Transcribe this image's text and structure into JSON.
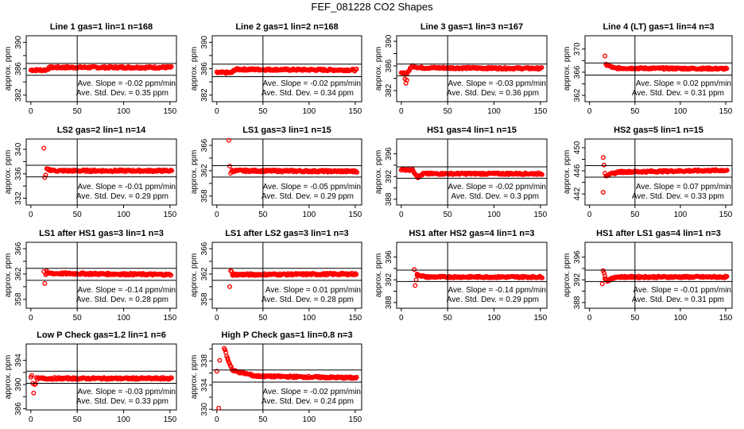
{
  "chart_data": {
    "type": "scatter",
    "title": "FEF_081228  CO2 Shapes",
    "xlabel": "",
    "ylabel": "approx. ppm",
    "xlim": [
      -5,
      157
    ],
    "xticks": [
      0,
      50,
      100,
      150
    ],
    "vline_x": 50,
    "marker_color": "#ff0000",
    "panels": [
      {
        "title": "Line 1 gas=1 lin=1 n=168",
        "ylim": [
          381,
          391
        ],
        "yticks": [
          382,
          384,
          386,
          388,
          390
        ],
        "ylabels": [
          382,
          386,
          390
        ],
        "hlines": [
          385.0,
          386.8
        ],
        "segments": [
          [
            0,
            16,
            385.8,
            385.8
          ],
          [
            16,
            21,
            385.8,
            386.2
          ],
          [
            21,
            152,
            386.2,
            386.2
          ]
        ],
        "outliers": [],
        "slope": "Ave. Slope =  -0.02 ppm/min",
        "sd": "Ave. Std. Dev. =  0.35 ppm"
      },
      {
        "title": "Line 2 gas=1 lin=2 n=168",
        "ylim": [
          381,
          391
        ],
        "yticks": [
          382,
          384,
          386,
          388,
          390
        ],
        "ylabels": [
          382,
          386,
          390
        ],
        "hlines": [
          384.8,
          386.7
        ],
        "segments": [
          [
            0,
            16,
            385.4,
            385.4
          ],
          [
            16,
            20,
            385.4,
            385.9
          ],
          [
            20,
            152,
            385.9,
            385.8
          ]
        ],
        "outliers": [],
        "slope": "Ave. Slope =  -0.02 ppm/min",
        "sd": "Ave. Std. Dev. =  0.34 ppm"
      },
      {
        "title": "Line 3 gas=1 lin=3 n=167",
        "ylim": [
          380.2,
          390.9
        ],
        "yticks": [
          382,
          384,
          386,
          388,
          390
        ],
        "ylabels": [
          382,
          386,
          390
        ],
        "hlines": [
          384.4,
          386.3
        ],
        "segments": [
          [
            0,
            6,
            384.8,
            384.8
          ],
          [
            6,
            12,
            384.8,
            386.0
          ],
          [
            12,
            20,
            386.0,
            385.7
          ],
          [
            20,
            152,
            385.7,
            385.6
          ]
        ],
        "outliers": [
          [
            4,
            383.9
          ],
          [
            5,
            383.2
          ],
          [
            6,
            383.7
          ]
        ],
        "slope": "Ave. Slope =  -0.03 ppm/min",
        "sd": "Ave. Std. Dev. =  0.36 ppm"
      },
      {
        "title": "Line 4 (LT) gas=1 lin=4 n=3",
        "ylim": [
          360.9,
          372.3
        ],
        "yticks": [
          362,
          364,
          366,
          368,
          370
        ],
        "ylabels": [
          362,
          366,
          370
        ],
        "hlines": [
          365.5,
          367.6
        ],
        "segments": [
          [
            18,
            26,
            367.3,
            366.8
          ],
          [
            26,
            152,
            366.7,
            366.6
          ]
        ],
        "outliers": [
          [
            17,
            368.8
          ]
        ],
        "slope": "Ave. Slope =  0.02 ppm/min",
        "sd": "Ave. Std. Dev. =  0.31 ppm"
      },
      {
        "title": "LS2 gas=2 lin=1 n=14",
        "ylim": [
          330.9,
          341.7
        ],
        "yticks": [
          332,
          334,
          336,
          338,
          340
        ],
        "ylabels": [
          332,
          336,
          340
        ],
        "hlines": [
          335.5,
          337.4
        ],
        "segments": [
          [
            17,
            25,
            336.7,
            336.6
          ],
          [
            25,
            152,
            336.5,
            336.5
          ]
        ],
        "outliers": [
          [
            14,
            340.2
          ],
          [
            15,
            335.4
          ],
          [
            16,
            335.8
          ]
        ],
        "slope": "Ave. Slope =  -0.01 ppm/min",
        "sd": "Ave. Std. Dev. =  0.29 ppm"
      },
      {
        "title": "LS1 gas=3 lin=1 n=15",
        "ylim": [
          356.6,
          367.0
        ],
        "yticks": [
          358,
          360,
          362,
          364,
          366
        ],
        "ylabels": [
          358,
          362,
          366
        ],
        "hlines": [
          361.0,
          362.8
        ],
        "segments": [
          [
            16,
            152,
            362.0,
            361.9
          ]
        ],
        "outliers": [
          [
            13,
            366.8
          ],
          [
            14,
            362.7
          ],
          [
            15,
            361.6
          ]
        ],
        "slope": "Ave. Slope =  -0.05 ppm/min",
        "sd": "Ave. Std. Dev. =  0.29 ppm"
      },
      {
        "title": "HS1 gas=4 lin=1 n=15",
        "ylim": [
          387.0,
          398.6
        ],
        "yticks": [
          388,
          390,
          392,
          394,
          396
        ],
        "ylabels": [
          388,
          392,
          396
        ],
        "hlines": [
          391.7,
          393.7
        ],
        "segments": [
          [
            0,
            12,
            393.2,
            393.2
          ],
          [
            12,
            18,
            393.2,
            391.9
          ],
          [
            18,
            24,
            391.9,
            392.5
          ],
          [
            24,
            152,
            392.5,
            392.5
          ]
        ],
        "outliers": [],
        "slope": "Ave. Slope =  -0.02 ppm/min",
        "sd": "Ave. Std. Dev. =  0.3 ppm"
      },
      {
        "title": "HS2 gas=5 lin=1 n=15",
        "ylim": [
          440.1,
          451.5
        ],
        "yticks": [
          442,
          444,
          446,
          448,
          450
        ],
        "ylabels": [
          442,
          446,
          450
        ],
        "hlines": [
          444.9,
          446.9
        ],
        "segments": [
          [
            18,
            30,
            445.2,
            445.7
          ],
          [
            30,
            152,
            445.8,
            446.1
          ]
        ],
        "outliers": [
          [
            15,
            448.3
          ],
          [
            15,
            442.3
          ],
          [
            16,
            447.0
          ],
          [
            17,
            445.6
          ]
        ],
        "slope": "Ave. Slope =  0.07 ppm/min",
        "sd": "Ave. Std. Dev. =  0.33 ppm"
      },
      {
        "title": "LS1 after HS1 gas=3 lin=1 n=3",
        "ylim": [
          356.6,
          367.0
        ],
        "yticks": [
          358,
          360,
          362,
          364,
          366
        ],
        "ylabels": [
          358,
          362,
          366
        ],
        "hlines": [
          361.0,
          362.9
        ],
        "segments": [
          [
            17,
            152,
            362.1,
            361.9
          ]
        ],
        "outliers": [
          [
            14,
            362.4
          ],
          [
            15,
            360.5
          ],
          [
            16,
            361.9
          ],
          [
            17,
            362.5
          ]
        ],
        "slope": "Ave. Slope =  -0.14 ppm/min",
        "sd": "Ave. Std. Dev. =  0.28 ppm"
      },
      {
        "title": "LS1 after LS2 gas=3 lin=1 n=3",
        "ylim": [
          356.6,
          367.0
        ],
        "yticks": [
          358,
          360,
          362,
          364,
          366
        ],
        "ylabels": [
          358,
          362,
          366
        ],
        "hlines": [
          361.0,
          362.9
        ],
        "segments": [
          [
            17,
            152,
            361.9,
            362.0
          ]
        ],
        "outliers": [
          [
            14,
            360.0
          ],
          [
            15,
            362.5
          ],
          [
            16,
            362.4
          ],
          [
            17,
            361.8
          ]
        ],
        "slope": "Ave. Slope =  0.01 ppm/min",
        "sd": "Ave. Std. Dev. =  0.28 ppm"
      },
      {
        "title": "HS1 after HS2 gas=4 lin=1 n=3",
        "ylim": [
          387.0,
          398.6
        ],
        "yticks": [
          388,
          390,
          392,
          394,
          396
        ],
        "ylabels": [
          388,
          392,
          396
        ],
        "hlines": [
          391.7,
          393.7
        ],
        "segments": [
          [
            17,
            25,
            392.9,
            392.6
          ],
          [
            25,
            152,
            392.5,
            392.5
          ]
        ],
        "outliers": [
          [
            14,
            393.8
          ],
          [
            15,
            391.0
          ],
          [
            16,
            392.0
          ],
          [
            17,
            392.8
          ]
        ],
        "slope": "Ave. Slope =  -0.14 ppm/min",
        "sd": "Ave. Std. Dev. =  0.29 ppm"
      },
      {
        "title": "HS1 after LS1 gas=4 lin=1 n=3",
        "ylim": [
          387.0,
          398.6
        ],
        "yticks": [
          388,
          390,
          392,
          394,
          396
        ],
        "ylabels": [
          388,
          392,
          396
        ],
        "hlines": [
          391.7,
          393.7
        ],
        "segments": [
          [
            17,
            20,
            392.3,
            391.8
          ],
          [
            20,
            28,
            391.9,
            392.4
          ],
          [
            28,
            152,
            392.5,
            392.5
          ]
        ],
        "outliers": [
          [
            14,
            391.3
          ],
          [
            15,
            393.6
          ],
          [
            16,
            393.2
          ],
          [
            17,
            392.7
          ]
        ],
        "slope": "Ave. Slope =  -0.01 ppm/min",
        "sd": "Ave. Std. Dev. =  0.31 ppm"
      },
      {
        "title": "Low P Check gas=1.2 lin=1 n=6",
        "ylim": [
          385.8,
          396.7
        ],
        "yticks": [
          386,
          388,
          390,
          392,
          394
        ],
        "ylabels": [
          386,
          390,
          394
        ],
        "hlines": [
          390.2,
          392.2
        ],
        "segments": [
          [
            6,
            152,
            391.0,
            391.0
          ]
        ],
        "outliers": [
          [
            0,
            391.2
          ],
          [
            1,
            391.5
          ],
          [
            2,
            390.2
          ],
          [
            3,
            388.6
          ],
          [
            4,
            390.0
          ],
          [
            5,
            390.1
          ]
        ],
        "slope": "Ave. Slope =  -0.03 ppm/min",
        "sd": "Ave. Std. Dev. =  0.33 ppm"
      },
      {
        "title": "High P Check gas=1 lin=0.8 n=3",
        "ylim": [
          329.9,
          340.8
        ],
        "yticks": [
          330,
          332,
          334,
          336,
          338,
          340
        ],
        "ylabels": [
          330,
          334,
          338
        ],
        "hlines": [
          334.5,
          336.5
        ],
        "segments": [
          [
            8,
            12,
            340.2,
            338.2
          ],
          [
            12,
            17,
            338.2,
            336.5
          ],
          [
            17,
            40,
            336.4,
            335.6
          ],
          [
            40,
            152,
            335.5,
            335.2
          ]
        ],
        "outliers": [
          [
            0,
            336.3
          ],
          [
            2,
            330.2
          ],
          [
            3,
            338.1
          ]
        ],
        "slope": "Ave. Slope =  -0.02 ppm/min",
        "sd": "Ave. Std. Dev. =  0.24 ppm"
      }
    ]
  }
}
